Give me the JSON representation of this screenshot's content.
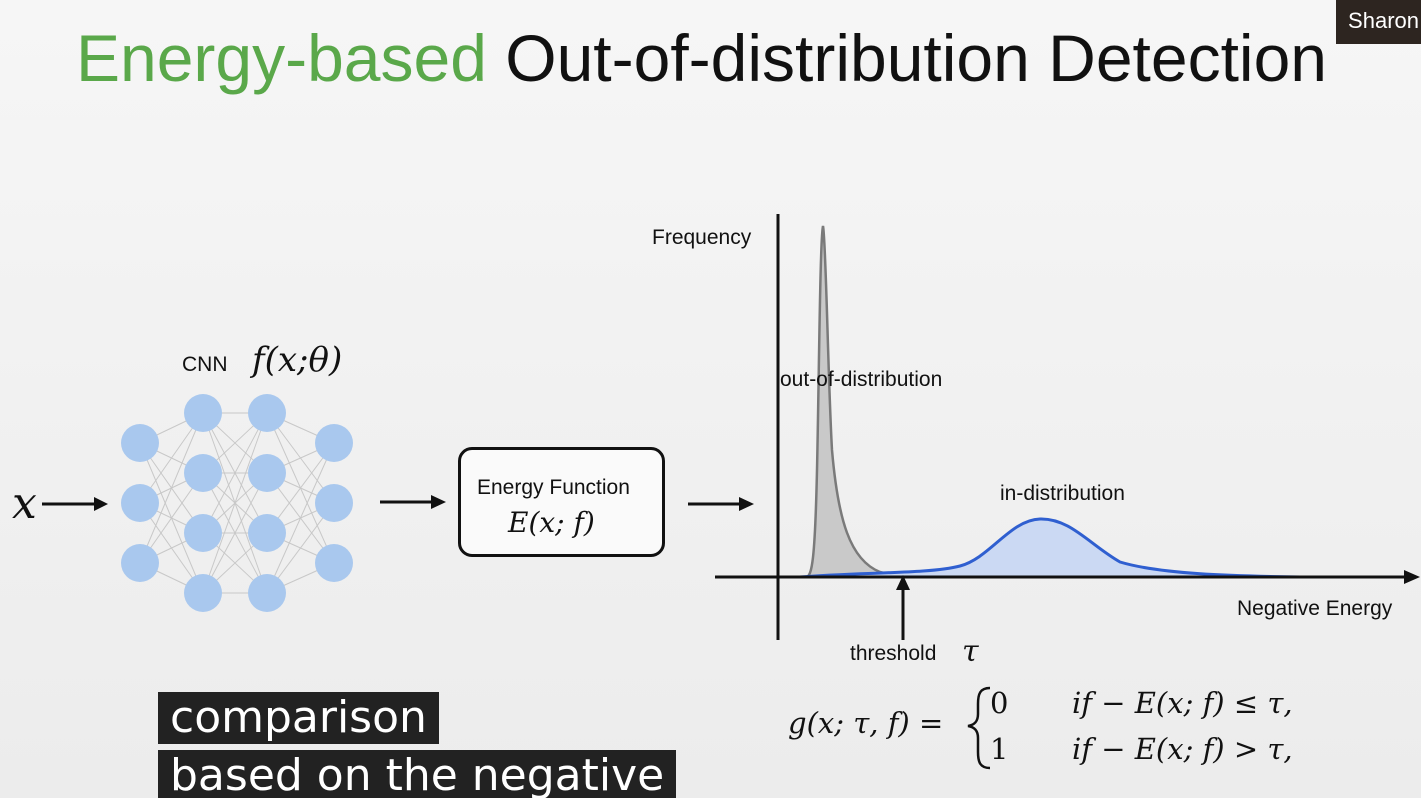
{
  "slide": {
    "title_part1": "Energy-based",
    "title_part2": "Out-of-distribution Detection",
    "speaker_name": "Sharon",
    "input_symbol": "x",
    "cnn_label": "CNN",
    "cnn_formula": "f(x;θ)",
    "energy_box_title": "Energy Function",
    "energy_box_formula": "E(x; f)",
    "plot": {
      "y_axis_label": "Frequency",
      "x_axis_label": "Negative Energy",
      "ood_label": "out-of-distribution",
      "id_label": "in-distribution",
      "threshold_label": "threshold",
      "threshold_symbol": "τ"
    },
    "formula": {
      "lhs": "g(x; τ, f) =",
      "case1_value": "0",
      "case1_condition": "if  − E(x; f) ≤ τ,",
      "case2_value": "1",
      "case2_condition": "if  − E(x; f) > τ,"
    },
    "captions": {
      "line1": "comparison",
      "line2": "based on the negative"
    },
    "colors": {
      "title_accent": "#5aa84a",
      "neuron": "#a9c8ee",
      "in_distribution": "#2f5fd0",
      "out_of_distribution": "#7a7a7a"
    }
  }
}
